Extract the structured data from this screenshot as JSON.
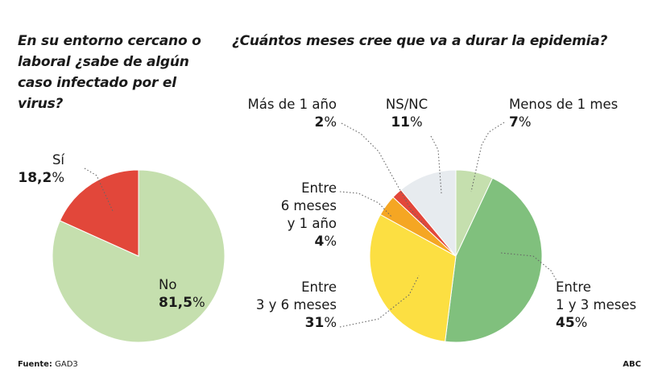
{
  "footer": {
    "source_label": "Fuente:",
    "source_value": "GAD3",
    "brand": "ABC"
  },
  "colors": {
    "light_green": "#c5dfae",
    "green": "#80c07d",
    "yellow": "#fcdf42",
    "orange": "#f5a623",
    "red": "#e2473a",
    "light_gray": "#e7ebef",
    "leader_line": "#666666"
  },
  "chart_data": [
    {
      "type": "pie",
      "title": "En su entorno cercano o laboral ¿sabe de algún caso infectado por el virus?",
      "title_lines": [
        "En su entorno cercano o",
        "laboral ¿sabe de algún",
        "caso infectado por el",
        "virus?"
      ],
      "start_angle_deg": 0,
      "slices": [
        {
          "label": "No",
          "value": 81.5,
          "value_text": "81,5",
          "color": "#c5dfae"
        },
        {
          "label": "Sí",
          "value": 18.2,
          "value_text": "18,2",
          "color": "#e2473a"
        }
      ]
    },
    {
      "type": "pie",
      "title": "¿Cuántos meses cree que va a durar la epidemia?",
      "start_angle_deg": 0,
      "slices": [
        {
          "label": "Menos de 1 mes",
          "label_lines": [
            "Menos de 1 mes"
          ],
          "value": 7,
          "value_text": "7",
          "color": "#c5dfae"
        },
        {
          "label": "Entre 1 y 3 meses",
          "label_lines": [
            "Entre",
            "1 y 3 meses"
          ],
          "value": 45,
          "value_text": "45",
          "color": "#80c07d"
        },
        {
          "label": "Entre 3 y 6 meses",
          "label_lines": [
            "Entre",
            "3 y 6 meses"
          ],
          "value": 31,
          "value_text": "31",
          "color": "#fcdf42"
        },
        {
          "label": "Entre 6 meses y 1 año",
          "label_lines": [
            "Entre",
            "6 meses",
            "y 1 año"
          ],
          "value": 4,
          "value_text": "4",
          "color": "#f5a623"
        },
        {
          "label": "Más de 1 año",
          "label_lines": [
            "Más de 1 año"
          ],
          "value": 2,
          "value_text": "2",
          "color": "#e2473a"
        },
        {
          "label": "NS/NC",
          "label_lines": [
            "NS/NC"
          ],
          "value": 11,
          "value_text": "11",
          "color": "#e7ebef"
        }
      ]
    }
  ]
}
